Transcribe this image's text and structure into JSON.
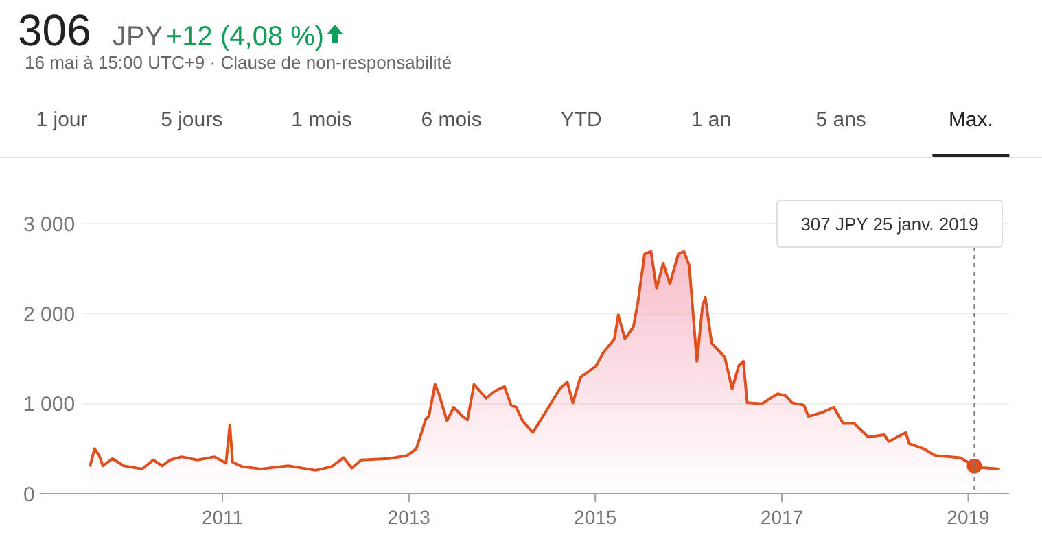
{
  "chart_data": {
    "type": "area",
    "title": "306",
    "subtitle": "16 mai à 15:00 UTC+9 · Clause de non-responsabilité",
    "annotations": [
      "JPY",
      "+12 (4,08 %)",
      "1 jour",
      "5 jours",
      "1 mois",
      "6 mois",
      "YTD",
      "1 an",
      "5 ans",
      "Max.",
      "307 JPY  25 janv. 2019"
    ],
    "x": [
      "2009-07-31",
      "2009-08-18",
      "2009-09-05",
      "2009-09-20",
      "2009-10-27",
      "2009-12-10",
      "2010-02-20",
      "2010-04-05",
      "2010-05-10",
      "2010-06-10",
      "2010-07-25",
      "2010-09-25",
      "2010-12-01",
      "2011-01-15",
      "2011-01-30",
      "2011-02-10",
      "2011-03-20",
      "2011-06-01",
      "2011-09-15",
      "2012-01-01",
      "2012-03-03",
      "2012-04-20",
      "2012-05-22",
      "2012-06-28",
      "2012-10-15",
      "2012-12-25",
      "2013-01-30",
      "2013-03-08",
      "2013-03-20",
      "2013-04-13",
      "2013-04-28",
      "2013-05-30",
      "2013-06-25",
      "2013-07-30",
      "2013-08-18",
      "2013-09-13",
      "2013-10-30",
      "2013-12-03",
      "2014-01-10",
      "2014-02-05",
      "2014-02-25",
      "2014-03-22",
      "2014-05-01",
      "2014-06-10",
      "2014-08-15",
      "2014-09-13",
      "2014-10-05",
      "2014-11-03",
      "2015-01-04",
      "2015-02-02",
      "2015-03-17",
      "2015-04-01",
      "2015-04-27",
      "2015-05-30",
      "2015-06-17",
      "2015-07-13",
      "2015-08-07",
      "2015-08-29",
      "2015-09-24",
      "2015-10-20",
      "2015-11-22",
      "2015-12-14",
      "2016-01-04",
      "2016-02-03",
      "2016-02-25",
      "2016-03-07",
      "2016-04-01",
      "2016-05-22",
      "2016-06-20",
      "2016-07-16",
      "2016-08-03",
      "2016-08-18",
      "2016-10-15",
      "2016-12-16",
      "2017-01-15",
      "2017-02-10",
      "2017-03-28",
      "2017-04-15",
      "2017-06-05",
      "2017-07-23",
      "2017-08-29",
      "2017-10-12",
      "2017-12-05",
      "2018-02-06",
      "2018-02-24",
      "2018-05-01",
      "2018-05-15",
      "2018-07-10",
      "2018-08-25",
      "2018-12-01",
      "2019-01-25",
      "2019-02-25",
      "2019-05-05"
    ],
    "series": [
      {
        "color": "#e0501e",
        "values": [
          300,
          500,
          425,
          310,
          390,
          310,
          275,
          375,
          310,
          375,
          410,
          375,
          410,
          340,
          760,
          350,
          300,
          275,
          310,
          260,
          300,
          400,
          285,
          375,
          390,
          425,
          500,
          830,
          860,
          1215,
          1110,
          810,
          960,
          860,
          820,
          1215,
          1060,
          1140,
          1190,
          985,
          960,
          810,
          680,
          860,
          1165,
          1240,
          1010,
          1290,
          1420,
          1570,
          1720,
          1985,
          1720,
          1850,
          2130,
          2660,
          2690,
          2280,
          2560,
          2330,
          2660,
          2690,
          2535,
          1470,
          2080,
          2180,
          1670,
          1520,
          1165,
          1420,
          1470,
          1010,
          1000,
          1110,
          1090,
          1010,
          985,
          860,
          900,
          960,
          780,
          780,
          630,
          655,
          580,
          680,
          555,
          500,
          425,
          400,
          307,
          290,
          275
        ]
      },
      {
        "type": "scatter",
        "color": "#e0501e",
        "x": [
          "2019-01-25"
        ],
        "values": [
          307
        ]
      }
    ],
    "xlim": [
      "2008-12-25",
      "2019-06-10"
    ],
    "ylim": [
      0,
      3000
    ],
    "xticks": [
      {
        "value": "2011",
        "label": "2011"
      },
      {
        "value": "2013",
        "label": "2013"
      },
      {
        "value": "2015",
        "label": "2015"
      },
      {
        "value": "2017",
        "label": "2017"
      },
      {
        "value": "2019",
        "label": "2019"
      }
    ],
    "yticks": [
      0,
      {
        "value": 1000,
        "label": "1 000"
      },
      {
        "value": 2000,
        "label": "2 000"
      },
      {
        "value": 3000,
        "label": "3 000"
      }
    ],
    "ref_lines": [
      {
        "axis": "x",
        "value": "2019-01-25",
        "line_style": "dashed",
        "color": "#777777"
      }
    ],
    "grid": "y"
  }
}
